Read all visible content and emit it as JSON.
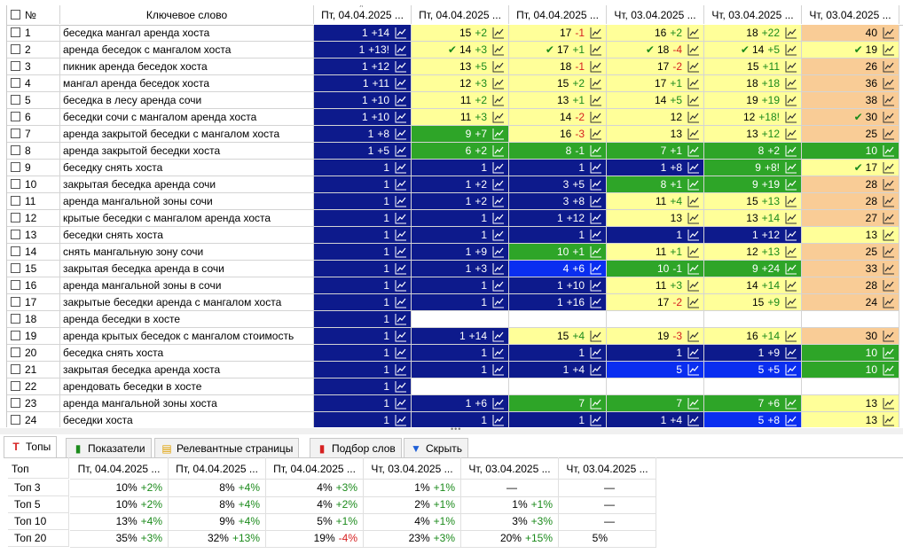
{
  "colors": {
    "navy": "#0d1a8c",
    "bright_blue": "#0a2ef0",
    "green": "#2ea528",
    "yellow": "#ffff99",
    "orange": "#f9cc96",
    "white": "#ffffff",
    "pos": "#1b8a1b",
    "neg": "#d62020"
  },
  "grid": {
    "num_header": "№",
    "keyword_header": "Ключевое слово",
    "date_headers": [
      "Пт, 04.04.2025 ...",
      "Пт, 04.04.2025 ...",
      "Пт, 04.04.2025 ...",
      "Чт, 03.04.2025 ...",
      "Чт, 03.04.2025 ...",
      "Чт, 03.04.2025 ..."
    ],
    "rows": [
      {
        "n": "1",
        "kw": "беседка мангал аренда хоста",
        "c": [
          [
            "N",
            "1",
            "+14"
          ],
          [
            "Y",
            "15",
            "+2"
          ],
          [
            "Y",
            "17",
            "-1"
          ],
          [
            "Y",
            "16",
            "+2"
          ],
          [
            "Y",
            "18",
            "+22"
          ],
          [
            "O",
            "40",
            ""
          ]
        ]
      },
      {
        "n": "2",
        "kw": "аренда беседок с мангалом хоста",
        "c": [
          [
            "N",
            "1",
            "+13!"
          ],
          [
            "Y",
            "14",
            "+3",
            "v"
          ],
          [
            "Y",
            "17",
            "+1",
            "v"
          ],
          [
            "Y",
            "18",
            "-4",
            "v"
          ],
          [
            "Y",
            "14",
            "+5",
            "v"
          ],
          [
            "Y",
            "19",
            "",
            "v"
          ]
        ]
      },
      {
        "n": "3",
        "kw": "пикник аренда беседок хоста",
        "c": [
          [
            "N",
            "1",
            "+12"
          ],
          [
            "Y",
            "13",
            "+5"
          ],
          [
            "Y",
            "18",
            "-1"
          ],
          [
            "Y",
            "17",
            "-2"
          ],
          [
            "Y",
            "15",
            "+11"
          ],
          [
            "O",
            "26",
            ""
          ]
        ]
      },
      {
        "n": "4",
        "kw": "мангал аренда беседок хоста",
        "c": [
          [
            "N",
            "1",
            "+11"
          ],
          [
            "Y",
            "12",
            "+3"
          ],
          [
            "Y",
            "15",
            "+2"
          ],
          [
            "Y",
            "17",
            "+1"
          ],
          [
            "Y",
            "18",
            "+18"
          ],
          [
            "O",
            "36",
            ""
          ]
        ]
      },
      {
        "n": "5",
        "kw": "беседка в лесу аренда сочи",
        "c": [
          [
            "N",
            "1",
            "+10"
          ],
          [
            "Y",
            "11",
            "+2"
          ],
          [
            "Y",
            "13",
            "+1"
          ],
          [
            "Y",
            "14",
            "+5"
          ],
          [
            "Y",
            "19",
            "+19"
          ],
          [
            "O",
            "38",
            ""
          ]
        ]
      },
      {
        "n": "6",
        "kw": "беседки сочи с мангалом аренда хоста",
        "c": [
          [
            "N",
            "1",
            "+10"
          ],
          [
            "Y",
            "11",
            "+3"
          ],
          [
            "Y",
            "14",
            "-2"
          ],
          [
            "Y",
            "12",
            ""
          ],
          [
            "Y",
            "12",
            "+18!"
          ],
          [
            "O",
            "30",
            "",
            "v"
          ]
        ]
      },
      {
        "n": "7",
        "kw": "аренда закрытой беседки с мангалом хоста",
        "c": [
          [
            "N",
            "1",
            "+8"
          ],
          [
            "G",
            "9",
            "+7"
          ],
          [
            "Y",
            "16",
            "-3"
          ],
          [
            "Y",
            "13",
            ""
          ],
          [
            "Y",
            "13",
            "+12"
          ],
          [
            "O",
            "25",
            ""
          ]
        ]
      },
      {
        "n": "8",
        "kw": "аренда закрытой беседки хоста",
        "c": [
          [
            "N",
            "1",
            "+5"
          ],
          [
            "G",
            "6",
            "+2"
          ],
          [
            "G",
            "8",
            "-1"
          ],
          [
            "G",
            "7",
            "+1"
          ],
          [
            "G",
            "8",
            "+2"
          ],
          [
            "G",
            "10",
            ""
          ]
        ]
      },
      {
        "n": "9",
        "kw": "беседку снять хоста",
        "c": [
          [
            "N",
            "1",
            ""
          ],
          [
            "N",
            "1",
            ""
          ],
          [
            "N",
            "1",
            ""
          ],
          [
            "N",
            "1",
            "+8"
          ],
          [
            "G",
            "9",
            "+8!"
          ],
          [
            "Y",
            "17",
            "",
            "v"
          ]
        ]
      },
      {
        "n": "10",
        "kw": "закрытая беседка аренда сочи",
        "c": [
          [
            "N",
            "1",
            ""
          ],
          [
            "N",
            "1",
            "+2"
          ],
          [
            "N",
            "3",
            "+5"
          ],
          [
            "G",
            "8",
            "+1"
          ],
          [
            "G",
            "9",
            "+19"
          ],
          [
            "O",
            "28",
            ""
          ]
        ]
      },
      {
        "n": "11",
        "kw": "аренда мангальной зоны сочи",
        "c": [
          [
            "N",
            "1",
            ""
          ],
          [
            "N",
            "1",
            "+2"
          ],
          [
            "N",
            "3",
            "+8"
          ],
          [
            "Y",
            "11",
            "+4"
          ],
          [
            "Y",
            "15",
            "+13"
          ],
          [
            "O",
            "28",
            ""
          ]
        ]
      },
      {
        "n": "12",
        "kw": "крытые беседки с мангалом аренда хоста",
        "c": [
          [
            "N",
            "1",
            ""
          ],
          [
            "N",
            "1",
            ""
          ],
          [
            "N",
            "1",
            "+12"
          ],
          [
            "Y",
            "13",
            ""
          ],
          [
            "Y",
            "13",
            "+14"
          ],
          [
            "O",
            "27",
            ""
          ]
        ]
      },
      {
        "n": "13",
        "kw": "беседки снять хоста",
        "c": [
          [
            "N",
            "1",
            ""
          ],
          [
            "N",
            "1",
            ""
          ],
          [
            "N",
            "1",
            ""
          ],
          [
            "N",
            "1",
            ""
          ],
          [
            "N",
            "1",
            "+12"
          ],
          [
            "Y",
            "13",
            ""
          ]
        ]
      },
      {
        "n": "14",
        "kw": "снять мангальную зону сочи",
        "c": [
          [
            "N",
            "1",
            ""
          ],
          [
            "N",
            "1",
            "+9"
          ],
          [
            "G",
            "10",
            "+1"
          ],
          [
            "Y",
            "11",
            "+1"
          ],
          [
            "Y",
            "12",
            "+13"
          ],
          [
            "O",
            "25",
            ""
          ]
        ]
      },
      {
        "n": "15",
        "kw": "закрытая беседка аренда в  сочи",
        "c": [
          [
            "N",
            "1",
            ""
          ],
          [
            "N",
            "1",
            "+3"
          ],
          [
            "B",
            "4",
            "+6"
          ],
          [
            "G",
            "10",
            "-1"
          ],
          [
            "G",
            "9",
            "+24"
          ],
          [
            "O",
            "33",
            ""
          ]
        ]
      },
      {
        "n": "16",
        "kw": "аренда мангальной зоны в  сочи",
        "c": [
          [
            "N",
            "1",
            ""
          ],
          [
            "N",
            "1",
            ""
          ],
          [
            "N",
            "1",
            "+10"
          ],
          [
            "Y",
            "11",
            "+3"
          ],
          [
            "Y",
            "14",
            "+14"
          ],
          [
            "O",
            "28",
            ""
          ]
        ]
      },
      {
        "n": "17",
        "kw": "закрытые беседки аренда с мангалом хоста",
        "c": [
          [
            "N",
            "1",
            ""
          ],
          [
            "N",
            "1",
            ""
          ],
          [
            "N",
            "1",
            "+16"
          ],
          [
            "Y",
            "17",
            "-2"
          ],
          [
            "Y",
            "15",
            "+9"
          ],
          [
            "O",
            "24",
            ""
          ]
        ]
      },
      {
        "n": "18",
        "kw": "аренда беседки в хосте",
        "c": [
          [
            "N",
            "1",
            ""
          ],
          [
            "W",
            "",
            ""
          ],
          [
            "W",
            "",
            ""
          ],
          [
            "W",
            "",
            ""
          ],
          [
            "W",
            "",
            ""
          ],
          [
            "W",
            "",
            ""
          ]
        ]
      },
      {
        "n": "19",
        "kw": "аренда крытых беседок с мангалом стоимость",
        "c": [
          [
            "N",
            "1",
            ""
          ],
          [
            "N",
            "1",
            "+14"
          ],
          [
            "Y",
            "15",
            "+4"
          ],
          [
            "Y",
            "19",
            "-3"
          ],
          [
            "Y",
            "16",
            "+14"
          ],
          [
            "O",
            "30",
            ""
          ]
        ]
      },
      {
        "n": "20",
        "kw": "беседка снять хоста",
        "c": [
          [
            "N",
            "1",
            ""
          ],
          [
            "N",
            "1",
            ""
          ],
          [
            "N",
            "1",
            ""
          ],
          [
            "N",
            "1",
            ""
          ],
          [
            "N",
            "1",
            "+9"
          ],
          [
            "G",
            "10",
            ""
          ]
        ]
      },
      {
        "n": "21",
        "kw": "закрытая беседка аренда хоста",
        "c": [
          [
            "N",
            "1",
            ""
          ],
          [
            "N",
            "1",
            ""
          ],
          [
            "N",
            "1",
            "+4"
          ],
          [
            "B",
            "5",
            ""
          ],
          [
            "B",
            "5",
            "+5"
          ],
          [
            "G",
            "10",
            ""
          ]
        ]
      },
      {
        "n": "22",
        "kw": "арендовать беседки в хосте",
        "c": [
          [
            "N",
            "1",
            ""
          ],
          [
            "W",
            "",
            ""
          ],
          [
            "W",
            "",
            ""
          ],
          [
            "W",
            "",
            ""
          ],
          [
            "W",
            "",
            ""
          ],
          [
            "W",
            "",
            ""
          ]
        ]
      },
      {
        "n": "23",
        "kw": "аренда мангальной зоны хоста",
        "c": [
          [
            "N",
            "1",
            ""
          ],
          [
            "N",
            "1",
            "+6"
          ],
          [
            "G",
            "7",
            ""
          ],
          [
            "G",
            "7",
            ""
          ],
          [
            "G",
            "7",
            "+6"
          ],
          [
            "Y",
            "13",
            ""
          ]
        ]
      },
      {
        "n": "24",
        "kw": "беседки хоста",
        "c": [
          [
            "N",
            "1",
            ""
          ],
          [
            "N",
            "1",
            ""
          ],
          [
            "N",
            "1",
            ""
          ],
          [
            "N",
            "1",
            "+4"
          ],
          [
            "B",
            "5",
            "+8"
          ],
          [
            "Y",
            "13",
            ""
          ]
        ]
      }
    ]
  },
  "tabs": [
    {
      "label": "Топы",
      "icon": "T",
      "icon_name": "tops-icon",
      "active": true
    },
    {
      "label": "Показатели",
      "icon": "▮",
      "icon_name": "bar-chart-icon",
      "active": false
    },
    {
      "label": "Релевантные страницы",
      "icon": "▤",
      "icon_name": "page-icon",
      "active": false
    },
    {
      "label": "Подбор слов",
      "icon": "▮",
      "icon_name": "chart-red-icon",
      "active": false
    },
    {
      "label": "Скрыть",
      "icon": "▼",
      "icon_name": "hide-arrow-icon",
      "active": false
    }
  ],
  "tops": {
    "header": "Топ",
    "dates": [
      "Пт, 04.04.2025 ...",
      "Пт, 04.04.2025 ...",
      "Пт, 04.04.2025 ...",
      "Чт, 03.04.2025 ...",
      "Чт, 03.04.2025 ...",
      "Чт, 03.04.2025 ..."
    ],
    "rows": [
      {
        "label": "Топ 3",
        "cells": [
          [
            "10%",
            "+2%"
          ],
          [
            "8%",
            "+4%"
          ],
          [
            "4%",
            "+3%"
          ],
          [
            "1%",
            "+1%"
          ],
          [
            "—",
            ""
          ],
          [
            "—",
            ""
          ]
        ]
      },
      {
        "label": "Топ 5",
        "cells": [
          [
            "10%",
            "+2%"
          ],
          [
            "8%",
            "+4%"
          ],
          [
            "4%",
            "+2%"
          ],
          [
            "2%",
            "+1%"
          ],
          [
            "1%",
            "+1%"
          ],
          [
            "—",
            ""
          ]
        ]
      },
      {
        "label": "Топ 10",
        "cells": [
          [
            "13%",
            "+4%"
          ],
          [
            "9%",
            "+4%"
          ],
          [
            "5%",
            "+1%"
          ],
          [
            "4%",
            "+1%"
          ],
          [
            "3%",
            "+3%"
          ],
          [
            "—",
            ""
          ]
        ]
      },
      {
        "label": "Топ 20",
        "cells": [
          [
            "35%",
            "+3%"
          ],
          [
            "32%",
            "+13%"
          ],
          [
            "19%",
            "-4%"
          ],
          [
            "23%",
            "+3%"
          ],
          [
            "20%",
            "+15%"
          ],
          [
            "5%",
            ""
          ]
        ]
      }
    ]
  }
}
